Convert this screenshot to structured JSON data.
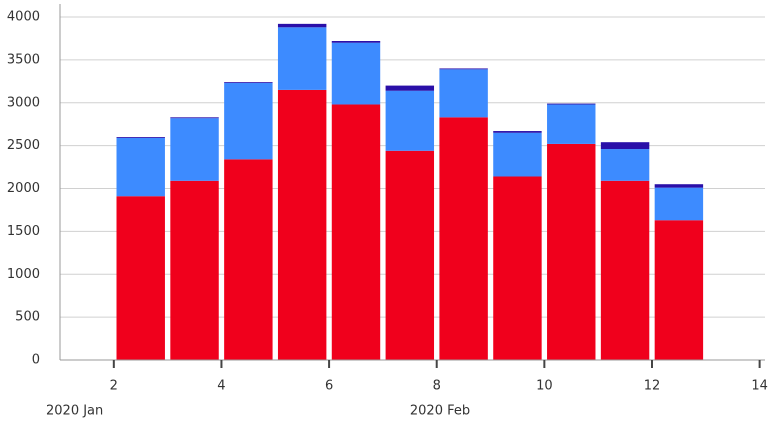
{
  "chart_data": {
    "type": "stacked_bar",
    "x": [
      2.5,
      3.5,
      4.5,
      5.5,
      6.5,
      7.5,
      8.5,
      9.5,
      10.5,
      11.5,
      12.5
    ],
    "series": [
      {
        "color": "#f0001c",
        "values": [
          1910,
          2090,
          2340,
          3150,
          2980,
          2440,
          2830,
          2140,
          2520,
          2090,
          1630
        ]
      },
      {
        "color": "#3d8bff",
        "values": [
          680,
          730,
          890,
          730,
          720,
          700,
          560,
          510,
          460,
          370,
          380
        ]
      },
      {
        "color": "#2a0fa8",
        "values": [
          10,
          10,
          10,
          40,
          20,
          60,
          10,
          20,
          10,
          80,
          40
        ]
      }
    ],
    "xlim": [
      1,
      14.1
    ],
    "xticks": [
      2,
      4,
      6,
      8,
      10,
      12,
      14
    ],
    "ylim": [
      0,
      4000
    ],
    "yticks": [
      0,
      500,
      1000,
      1500,
      2000,
      2500,
      3000,
      3500,
      4000
    ],
    "annotations": [
      "2020 Jan",
      "2020 Feb"
    ],
    "grid": true
  }
}
